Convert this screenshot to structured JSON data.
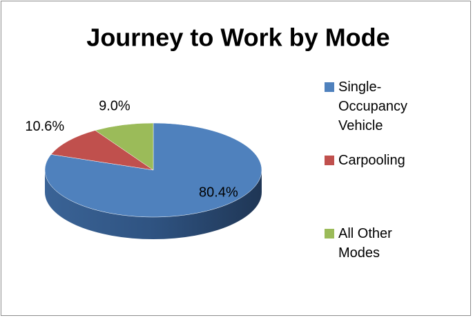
{
  "chart_data": {
    "type": "pie",
    "title": "Journey to Work by Mode",
    "categories": [
      "Single-Occupancy Vehicle",
      "Carpooling",
      "All Other Modes"
    ],
    "values": [
      80.4,
      10.6,
      9.0
    ],
    "value_labels": [
      "80.4%",
      "10.6%",
      "9.0%"
    ],
    "colors": [
      "#4f81bd",
      "#c0504d",
      "#9bbb59"
    ],
    "legend": "right"
  }
}
